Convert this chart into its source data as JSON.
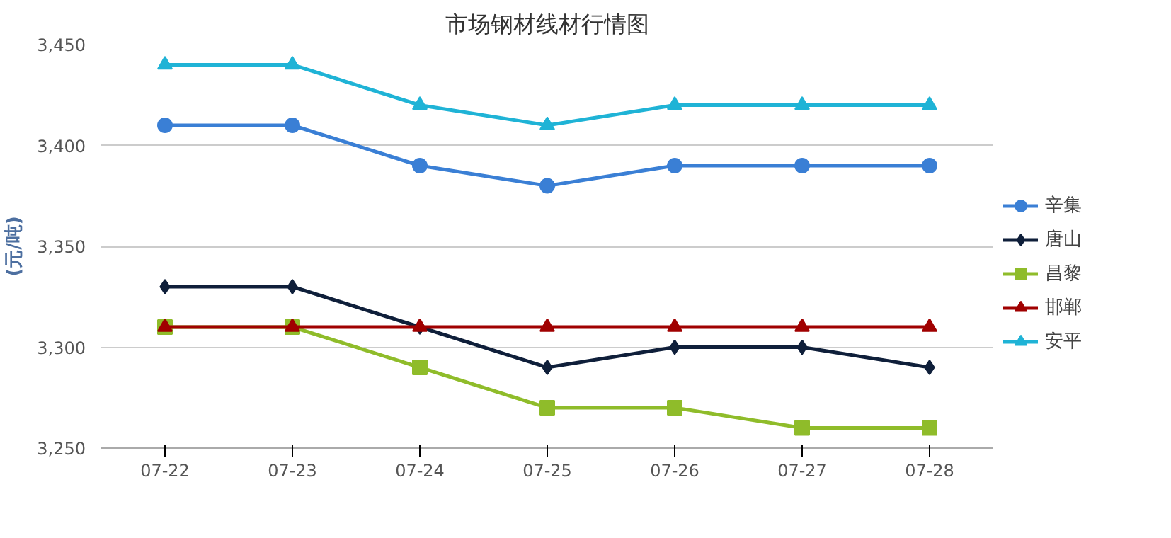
{
  "chart_data": {
    "type": "line",
    "title": "市场钢材线材行情图",
    "ylabel": "(元/吨)",
    "categories": [
      "07-22",
      "07-23",
      "07-24",
      "07-25",
      "07-26",
      "07-27",
      "07-28"
    ],
    "series": [
      {
        "name": "辛集",
        "color": "#3a7fd5",
        "marker": "circle",
        "values": [
          3410,
          3410,
          3390,
          3380,
          3390,
          3390,
          3390
        ]
      },
      {
        "name": "唐山",
        "color": "#0f1f3a",
        "marker": "diamond",
        "values": [
          3330,
          3330,
          3310,
          3290,
          3300,
          3300,
          3290
        ]
      },
      {
        "name": "昌黎",
        "color": "#8fbc2a",
        "marker": "square",
        "values": [
          3310,
          3310,
          3290,
          3270,
          3270,
          3260,
          3260
        ]
      },
      {
        "name": "邯郸",
        "color": "#a00000",
        "marker": "triangle",
        "values": [
          3310,
          3310,
          3310,
          3310,
          3310,
          3310,
          3310
        ]
      },
      {
        "name": "安平",
        "color": "#1fb3d6",
        "marker": "triangle",
        "values": [
          3440,
          3440,
          3420,
          3410,
          3420,
          3420,
          3420
        ]
      }
    ],
    "ylim": [
      3250,
      3450
    ],
    "yticks": [
      {
        "value": 3250,
        "label": "3,250"
      },
      {
        "value": 3300,
        "label": "3,300"
      },
      {
        "value": 3350,
        "label": "3,350"
      },
      {
        "value": 3400,
        "label": "3,400"
      },
      {
        "value": 3450,
        "label": "3,450"
      }
    ],
    "grid": "y",
    "legend": "right",
    "line_style": "solid"
  }
}
